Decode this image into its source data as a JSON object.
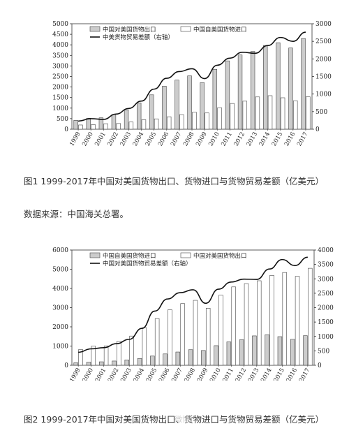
{
  "chart_data": [
    {
      "type": "bar",
      "categories": [
        "1999",
        "2000",
        "2001",
        "2002",
        "2003",
        "2004",
        "2005",
        "2006",
        "2007",
        "2008",
        "2009",
        "2010",
        "2011",
        "2012",
        "2013",
        "2014",
        "2015",
        "2016",
        "2017"
      ],
      "left_ylim": [
        0,
        5000
      ],
      "left_ticks": [
        0,
        500,
        1000,
        1500,
        2000,
        2500,
        3000,
        3500,
        4000,
        4500,
        5000
      ],
      "right_ylim": [
        0,
        3000
      ],
      "right_ticks": [
        0,
        500,
        1000,
        1500,
        2000,
        2500,
        3000
      ],
      "grid": false,
      "legend_placement": "top-left",
      "series": [
        {
          "name": "中国对美国货物出口",
          "kind": "bar",
          "fill": "#cccccc",
          "axis": "left",
          "values": [
            420,
            520,
            540,
            700,
            920,
            1250,
            1630,
            2040,
            2330,
            2530,
            2210,
            2840,
            3240,
            3520,
            3690,
            3970,
            4100,
            3850,
            4300
          ]
        },
        {
          "name": "中国自美国货物进口",
          "kind": "bar",
          "fill": "#ffffff",
          "axis": "left",
          "values": [
            200,
            220,
            260,
            270,
            340,
            450,
            490,
            590,
            690,
            810,
            770,
            1020,
            1220,
            1330,
            1530,
            1590,
            1490,
            1350,
            1540
          ]
        },
        {
          "name": "中美货物贸易差额（右轴）",
          "kind": "line",
          "color": "#111111",
          "axis": "right",
          "values": [
            230,
            300,
            280,
            430,
            590,
            800,
            1140,
            1450,
            1640,
            1720,
            1440,
            1820,
            2020,
            2190,
            2160,
            2380,
            2610,
            2500,
            2760
          ]
        }
      ]
    },
    {
      "type": "bar",
      "categories": [
        "1999",
        "2000",
        "2001",
        "2002",
        "2003",
        "2004",
        "2005",
        "2006",
        "2007",
        "2008",
        "2009",
        "2010",
        "2011",
        "2012",
        "2013",
        "2014",
        "2015",
        "2016",
        "2017"
      ],
      "left_ylim": [
        0,
        6000
      ],
      "left_ticks": [
        0,
        1000,
        2000,
        3000,
        4000,
        5000,
        6000
      ],
      "right_ylim": [
        0,
        4000
      ],
      "right_ticks": [
        0,
        500,
        1000,
        1500,
        2000,
        2500,
        3000,
        3500,
        4000
      ],
      "grid": false,
      "legend_placement": "top-left",
      "series": [
        {
          "name": "中国自美国货物进口",
          "kind": "bar",
          "fill": "#cccccc",
          "axis": "left",
          "values": [
            130,
            160,
            180,
            220,
            280,
            350,
            480,
            590,
            690,
            810,
            770,
            1020,
            1220,
            1330,
            1530,
            1590,
            1490,
            1350,
            1540
          ]
        },
        {
          "name": "中国对美国货物出口",
          "kind": "bar",
          "fill": "#ffffff",
          "axis": "left",
          "values": [
            820,
            1000,
            1010,
            1250,
            1520,
            1960,
            2430,
            2890,
            3210,
            3380,
            2970,
            3650,
            4080,
            4250,
            4400,
            4680,
            4830,
            4630,
            5050
          ]
        },
        {
          "name": "中国对美国货物贸易差额（右轴）",
          "kind": "line",
          "color": "#111111",
          "axis": "right",
          "values": [
            450,
            570,
            610,
            750,
            900,
            1280,
            1880,
            2300,
            2520,
            2620,
            2150,
            2640,
            2890,
            2990,
            2980,
            3340,
            3670,
            3460,
            3750
          ]
        }
      ]
    }
  ],
  "captions": {
    "figure1": "图1 1999-2017年中国对美国货物出口、货物进口与货物贸易差额（亿美元）",
    "source": "数据来源：中国海关总署。",
    "figure2": "图2 1999-2017年中国对美国货物出口、货物进口与货物贸易差额（亿美元）"
  },
  "watermark": "微博"
}
